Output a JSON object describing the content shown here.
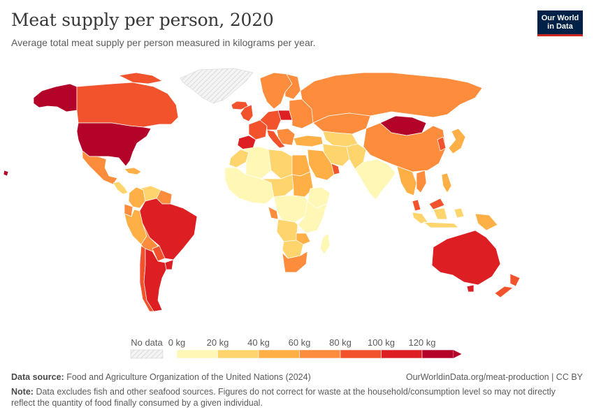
{
  "header": {
    "title": "Meat supply per person, 2020",
    "subtitle": "Average total meat supply per person measured in kilograms per year."
  },
  "logo": {
    "line1": "Our World",
    "line2": "in Data"
  },
  "colors": {
    "no_data": "#efefef",
    "ocean": "#ffffff",
    "bins": [
      "#fff7b6",
      "#fed46d",
      "#feaf45",
      "#fd8c3c",
      "#f3532c",
      "#dd1e22",
      "#b40329"
    ]
  },
  "legend": {
    "no_data_label": "No data",
    "tick_labels": [
      "0 kg",
      "20 kg",
      "40 kg",
      "60 kg",
      "80 kg",
      "100 kg",
      "120 kg"
    ]
  },
  "chart_data": {
    "type": "choropleth",
    "title": "Meat supply per person, 2020",
    "unit": "kg per person per year",
    "bins": [
      [
        0,
        20
      ],
      [
        20,
        40
      ],
      [
        40,
        60
      ],
      [
        60,
        80
      ],
      [
        80,
        100
      ],
      [
        100,
        120
      ],
      [
        120,
        null
      ]
    ],
    "regions": [
      {
        "name": "United States",
        "bin": 6
      },
      {
        "name": "Alaska",
        "bin": 6
      },
      {
        "name": "Canada",
        "bin": 4
      },
      {
        "name": "Greenland",
        "bin": null
      },
      {
        "name": "Mexico",
        "bin": 3
      },
      {
        "name": "Central America",
        "bin": 1
      },
      {
        "name": "Caribbean",
        "bin": 2
      },
      {
        "name": "Colombia",
        "bin": 2
      },
      {
        "name": "Venezuela",
        "bin": 1
      },
      {
        "name": "Guianas",
        "bin": 3
      },
      {
        "name": "Ecuador",
        "bin": 3
      },
      {
        "name": "Peru",
        "bin": 2
      },
      {
        "name": "Brazil",
        "bin": 5
      },
      {
        "name": "Bolivia",
        "bin": 3
      },
      {
        "name": "Paraguay",
        "bin": 4
      },
      {
        "name": "Uruguay",
        "bin": 5
      },
      {
        "name": "Chile",
        "bin": 4
      },
      {
        "name": "Argentina",
        "bin": 5
      },
      {
        "name": "Iceland",
        "bin": 4
      },
      {
        "name": "Scandinavia",
        "bin": 3
      },
      {
        "name": "Finland",
        "bin": 3
      },
      {
        "name": "UK & Ireland",
        "bin": 4
      },
      {
        "name": "Spain & Portugal",
        "bin": 5
      },
      {
        "name": "France",
        "bin": 4
      },
      {
        "name": "Central Europe",
        "bin": 4
      },
      {
        "name": "Poland",
        "bin": 5
      },
      {
        "name": "Italy",
        "bin": 4
      },
      {
        "name": "Eastern Europe",
        "bin": 3
      },
      {
        "name": "Balkans",
        "bin": 3
      },
      {
        "name": "Russia",
        "bin": 3
      },
      {
        "name": "Kazakhstan",
        "bin": 3
      },
      {
        "name": "Central Asia",
        "bin": 1
      },
      {
        "name": "Mongolia",
        "bin": 6
      },
      {
        "name": "China",
        "bin": 3
      },
      {
        "name": "Korea",
        "bin": 4
      },
      {
        "name": "Japan",
        "bin": 2
      },
      {
        "name": "Turkey",
        "bin": 2
      },
      {
        "name": "Iran",
        "bin": 1
      },
      {
        "name": "Saudi Arabia",
        "bin": 2
      },
      {
        "name": "Gulf",
        "bin": 4
      },
      {
        "name": "Afghanistan & Pakistan",
        "bin": 1
      },
      {
        "name": "India",
        "bin": 0
      },
      {
        "name": "Southeast Asia",
        "bin": 2
      },
      {
        "name": "Vietnam",
        "bin": 3
      },
      {
        "name": "Malaysia",
        "bin": 4
      },
      {
        "name": "Indonesia",
        "bin": 1
      },
      {
        "name": "Philippines",
        "bin": 2
      },
      {
        "name": "Papua New Guinea",
        "bin": 2
      },
      {
        "name": "Morocco",
        "bin": 1
      },
      {
        "name": "Algeria",
        "bin": 0
      },
      {
        "name": "Libya",
        "bin": 1
      },
      {
        "name": "Egypt",
        "bin": 2
      },
      {
        "name": "West Africa",
        "bin": 0
      },
      {
        "name": "Sahel",
        "bin": 1
      },
      {
        "name": "Sudan",
        "bin": 2
      },
      {
        "name": "Ethiopia",
        "bin": 0
      },
      {
        "name": "Central Africa",
        "bin": 0
      },
      {
        "name": "Gabon",
        "bin": 3
      },
      {
        "name": "East Africa",
        "bin": 0
      },
      {
        "name": "Angola",
        "bin": 1
      },
      {
        "name": "Namibia & Botswana",
        "bin": 1
      },
      {
        "name": "Zimbabwe",
        "bin": 2
      },
      {
        "name": "South Africa",
        "bin": 3
      },
      {
        "name": "Madagascar",
        "bin": 0
      },
      {
        "name": "Australia",
        "bin": 5
      },
      {
        "name": "New Zealand",
        "bin": 4
      },
      {
        "name": "Tasmania",
        "bin": 5
      }
    ]
  },
  "footer": {
    "source_label": "Data source:",
    "source_text": "Food and Agriculture Organization of the United Nations (2024)",
    "credit": "OurWorldinData.org/meat-production | CC BY",
    "note_label": "Note:",
    "note_text": "Data excludes fish and other seafood sources. Figures do not correct for waste at the household/consumption level so may not directly reflect the quantity of food finally consumed by a given individual."
  }
}
